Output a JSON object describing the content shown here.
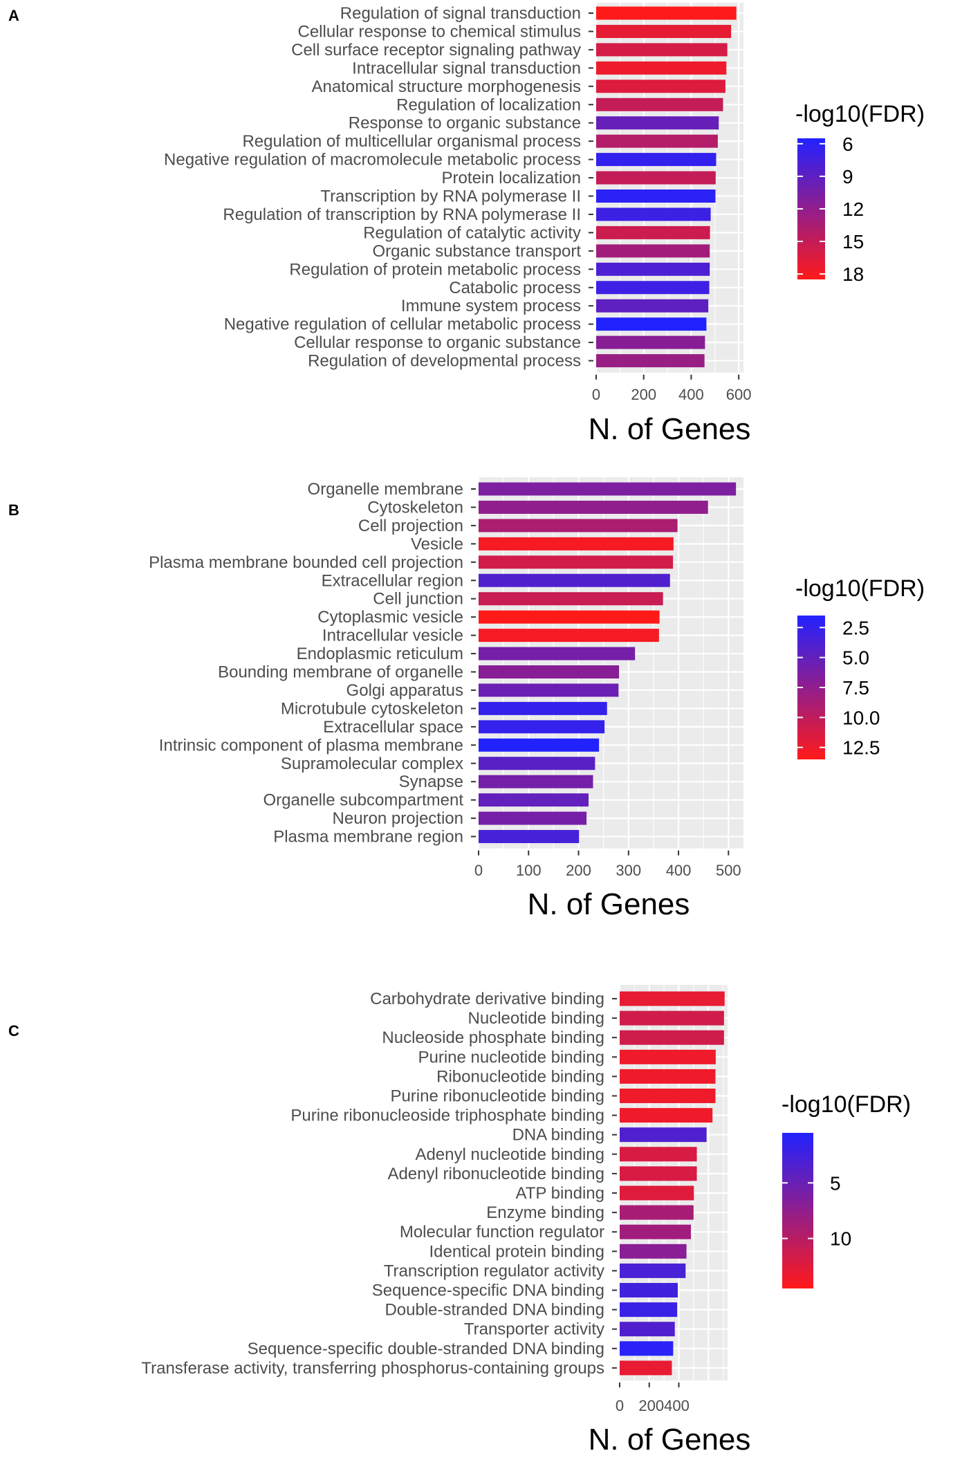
{
  "chart_data": [
    {
      "panel": "A",
      "type": "bar",
      "orientation": "horizontal",
      "xlabel": "N. of Genes",
      "xlim": [
        0,
        620
      ],
      "xticks": [
        0,
        200,
        400,
        600
      ],
      "tick_labels": [
        "0",
        "200",
        "400",
        "600"
      ],
      "categories": [
        "Regulation of signal transduction",
        "Cellular response to chemical stimulus",
        "Cell surface receptor signaling pathway",
        "Intracellular signal transduction",
        "Anatomical structure morphogenesis",
        "Regulation of localization",
        "Response to organic substance",
        "Regulation of multicellular organismal process",
        "Negative regulation of macromolecule metabolic process",
        "Protein localization",
        "Transcription by RNA polymerase II",
        "Regulation of transcription by RNA polymerase II",
        "Regulation of catalytic activity",
        "Organic substance transport",
        "Regulation of protein metabolic process",
        "Catabolic process",
        "Immune system process",
        "Negative regulation of cellular metabolic process",
        "Cellular response to organic substance",
        "Regulation of developmental process"
      ],
      "values": [
        590,
        568,
        552,
        548,
        544,
        534,
        516,
        512,
        505,
        503,
        502,
        482,
        479,
        478,
        478,
        476,
        472,
        464,
        458,
        456
      ],
      "neg_log10_fdr": [
        18.5,
        17,
        16,
        17.5,
        16.5,
        15,
        9.5,
        14,
        6.5,
        15,
        6,
        7,
        15.5,
        13,
        8,
        7,
        9,
        5.5,
        11.5,
        12.5
      ],
      "legend": {
        "title": "-log10(FDR)",
        "range": [
          5.5,
          18.5
        ],
        "ticks": [
          6,
          9,
          12,
          15,
          18
        ],
        "tick_labels": [
          "6",
          "9",
          "12",
          "15",
          "18"
        ],
        "low_color": "#2222ff",
        "high_color": "#ff1a1a"
      }
    },
    {
      "panel": "B",
      "type": "bar",
      "orientation": "horizontal",
      "xlabel": "N. of Genes",
      "xlim": [
        0,
        530
      ],
      "xticks": [
        0,
        100,
        200,
        300,
        400,
        500
      ],
      "tick_labels": [
        "0",
        "100",
        "200",
        "300",
        "400",
        "500"
      ],
      "categories": [
        "Organelle membrane",
        "Cytoskeleton",
        "Cell projection",
        "Vesicle",
        "Plasma membrane bounded cell projection",
        "Extracellular region",
        "Cell junction",
        "Cytoplasmic vesicle",
        "Intracellular vesicle",
        "Endoplasmic reticulum",
        "Bounding membrane of organelle",
        "Golgi apparatus",
        "Microtubule cytoskeleton",
        "Extracellular space",
        "Intrinsic component of plasma membrane",
        "Supramolecular complex",
        "Synapse",
        "Organelle subcompartment",
        "Neuron projection",
        "Plasma membrane region"
      ],
      "values": [
        515,
        459,
        398,
        390,
        389,
        383,
        369,
        362,
        361,
        313,
        281,
        280,
        257,
        252,
        241,
        233,
        229,
        220,
        216,
        201
      ],
      "neg_log10_fdr": [
        6.5,
        7.5,
        9,
        13,
        11,
        4,
        10.5,
        13.5,
        13,
        6,
        7,
        5.5,
        2.5,
        2.5,
        1.5,
        4.5,
        6,
        5,
        6,
        3.5
      ],
      "legend": {
        "title": "-log10(FDR)",
        "range": [
          1.5,
          13.5
        ],
        "ticks": [
          2.5,
          5.0,
          7.5,
          10.0,
          12.5
        ],
        "tick_labels": [
          "2.5",
          "5.0",
          "7.5",
          "10.0",
          "12.5"
        ],
        "low_color": "#2222ff",
        "high_color": "#ff1a1a"
      }
    },
    {
      "panel": "C",
      "type": "bar",
      "orientation": "horizontal",
      "xlabel": "N. of Genes",
      "xlim": [
        0,
        730
      ],
      "xticks": [
        0,
        200,
        400
      ],
      "tick_labels": [
        "0",
        "200",
        "400"
      ],
      "tick_label_combined": "200400",
      "categories": [
        "Carbohydrate derivative binding",
        "Nucleotide binding",
        "Nucleoside phosphate binding",
        "Purine nucleotide binding",
        "Ribonucleotide binding",
        "Purine ribonucleotide binding",
        "Purine ribonucleoside triphosphate binding",
        "DNA binding",
        "Adenyl nucleotide binding",
        "Adenyl ribonucleotide binding",
        "ATP binding",
        "Enzyme binding",
        "Molecular function regulator",
        "Identical protein binding",
        "Transcription regulator activity",
        "Sequence-specific DNA binding",
        "Double-stranded DNA binding",
        "Transporter activity",
        "Sequence-specific double-stranded DNA binding",
        "Transferase activity, transferring phosphorus-containing groups"
      ],
      "values": [
        710,
        706,
        706,
        650,
        648,
        648,
        628,
        588,
        522,
        522,
        502,
        500,
        482,
        452,
        446,
        393,
        389,
        373,
        362,
        353
      ],
      "neg_log10_fdr": [
        13,
        11.5,
        11.5,
        13.5,
        13.5,
        13.5,
        13.5,
        3.5,
        12,
        12,
        12.5,
        9,
        8.5,
        7,
        3,
        2.5,
        2,
        3.5,
        1,
        13
      ],
      "legend": {
        "title": "-log10(FDR)",
        "range": [
          0.5,
          14.5
        ],
        "ticks": [
          5,
          10
        ],
        "tick_labels": [
          "5",
          "10"
        ],
        "low_color": "#2222ff",
        "high_color": "#ff1a1a"
      }
    }
  ]
}
